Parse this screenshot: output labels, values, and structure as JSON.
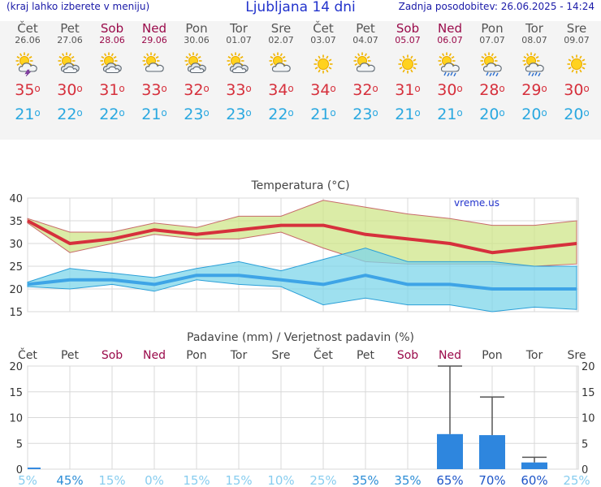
{
  "header": {
    "left_link": "(kraj lahko izberete v meniju)",
    "title": "Ljubljana 14 dni",
    "updated": "Zadnja posodobitev: 26.06.2025 - 14:24"
  },
  "days": [
    {
      "name": "Čet",
      "date": "26.06",
      "icon": "sun-cloud-thunder-icon",
      "tmax": "35",
      "tmin": "21",
      "weekend": false
    },
    {
      "name": "Pet",
      "date": "27.06",
      "icon": "partly-cloudy-icon",
      "tmax": "30",
      "tmin": "22",
      "weekend": false
    },
    {
      "name": "Sob",
      "date": "28.06",
      "icon": "partly-cloudy-icon",
      "tmax": "31",
      "tmin": "22",
      "weekend": true
    },
    {
      "name": "Ned",
      "date": "29.06",
      "icon": "sun-cloud-icon",
      "tmax": "33",
      "tmin": "21",
      "weekend": true
    },
    {
      "name": "Pon",
      "date": "30.06",
      "icon": "partly-cloudy-icon",
      "tmax": "32",
      "tmin": "23",
      "weekend": false
    },
    {
      "name": "Tor",
      "date": "01.07",
      "icon": "partly-cloudy-icon",
      "tmax": "33",
      "tmin": "23",
      "weekend": false
    },
    {
      "name": "Sre",
      "date": "02.07",
      "icon": "sun-cloud-icon",
      "tmax": "34",
      "tmin": "22",
      "weekend": false
    },
    {
      "name": "Čet",
      "date": "03.07",
      "icon": "sun-icon",
      "tmax": "34",
      "tmin": "21",
      "weekend": false
    },
    {
      "name": "Pet",
      "date": "04.07",
      "icon": "sun-cloud-icon",
      "tmax": "32",
      "tmin": "23",
      "weekend": false
    },
    {
      "name": "Sob",
      "date": "05.07",
      "icon": "sun-icon",
      "tmax": "31",
      "tmin": "21",
      "weekend": true
    },
    {
      "name": "Ned",
      "date": "06.07",
      "icon": "sun-cloud-rain-icon",
      "tmax": "30",
      "tmin": "21",
      "weekend": true
    },
    {
      "name": "Pon",
      "date": "07.07",
      "icon": "sun-cloud-rain-icon",
      "tmax": "28",
      "tmin": "20",
      "weekend": false
    },
    {
      "name": "Tor",
      "date": "08.07",
      "icon": "sun-cloud-rain-icon",
      "tmax": "29",
      "tmin": "20",
      "weekend": false
    },
    {
      "name": "Sre",
      "date": "09.07",
      "icon": "sun-icon",
      "tmax": "30",
      "tmin": "20",
      "weekend": false
    }
  ],
  "colors": {
    "max": "#d6303c",
    "min": "#2aa8e0",
    "precip": "#2e86de",
    "weekend": "#9a0a4a"
  },
  "chart_data": [
    {
      "type": "line",
      "title": "Temperatura (°C)",
      "watermark": "vreme.us",
      "categories": [
        "Čet",
        "Pet",
        "Sob",
        "Ned",
        "Pon",
        "Tor",
        "Sre",
        "Čet",
        "Pet",
        "Sob",
        "Ned",
        "Pon",
        "Tor",
        "Sre"
      ],
      "ylim": [
        15,
        40
      ],
      "yticks": [
        15,
        20,
        25,
        30,
        35,
        40
      ],
      "grid": true,
      "series": [
        {
          "values": [
            35,
            30,
            31,
            33,
            32,
            33,
            34,
            34,
            32,
            31,
            30,
            28,
            29,
            30
          ]
        },
        {
          "values": [
            35.5,
            32.5,
            32.5,
            34.5,
            33.5,
            36,
            36,
            39.5,
            38,
            36.5,
            35.5,
            34,
            34,
            35
          ]
        },
        {
          "values": [
            34.5,
            28,
            30,
            32,
            31,
            31,
            32.5,
            29,
            26,
            25.5,
            25.5,
            25.5,
            25,
            25.5
          ]
        },
        {
          "values": [
            21,
            22,
            22,
            21,
            23,
            23,
            22,
            21,
            23,
            21,
            21,
            20,
            20,
            20
          ]
        },
        {
          "values": [
            21.5,
            24.5,
            23.5,
            22.5,
            24.5,
            26,
            24,
            26.5,
            29,
            26,
            26,
            26,
            25,
            25
          ]
        },
        {
          "values": [
            20.5,
            20,
            21,
            19.5,
            22,
            21,
            20.5,
            16.5,
            18,
            16.5,
            16.5,
            15,
            16,
            15.5
          ]
        }
      ]
    },
    {
      "type": "bar",
      "title": "Padavine (mm) / Verjetnost padavin (%)",
      "categories": [
        "Čet",
        "Pet",
        "Sob",
        "Ned",
        "Pon",
        "Tor",
        "Sre",
        "Čet",
        "Pet",
        "Sob",
        "Ned",
        "Pon",
        "Tor",
        "Sre"
      ],
      "ylim": [
        0,
        20
      ],
      "yticks": [
        0,
        5,
        10,
        15,
        20
      ],
      "grid": true,
      "values": [
        0.3,
        0,
        0,
        0,
        0,
        0,
        0,
        0,
        0,
        0,
        6.8,
        6.6,
        1.3,
        0
      ],
      "error_max": [
        0,
        0,
        0,
        0,
        0,
        0,
        0,
        0,
        0,
        0,
        20,
        14,
        2.3,
        0
      ],
      "probabilities": [
        "5%",
        "45%",
        "15%",
        "0%",
        "15%",
        "15%",
        "10%",
        "25%",
        "35%",
        "35%",
        "65%",
        "70%",
        "60%",
        "25%"
      ]
    }
  ]
}
